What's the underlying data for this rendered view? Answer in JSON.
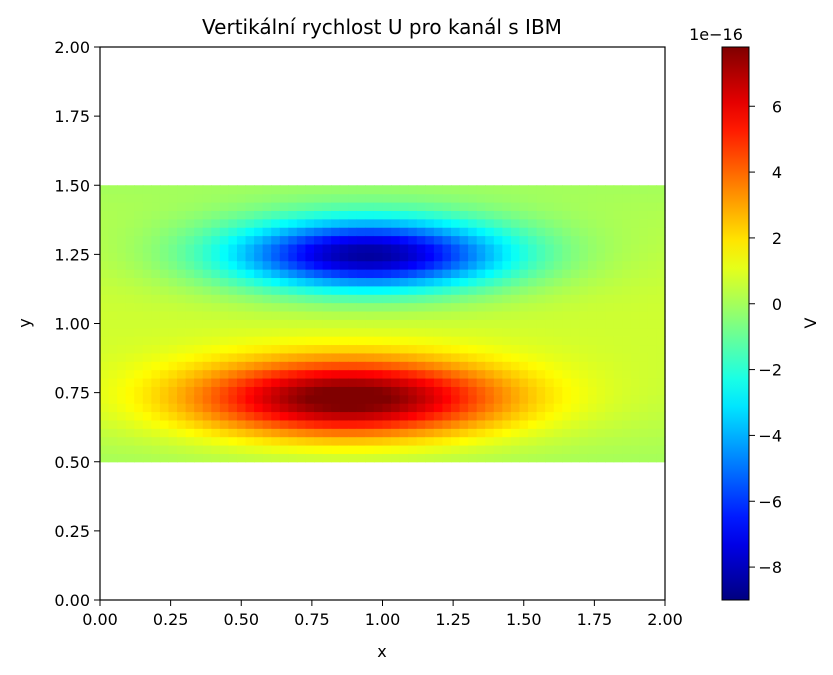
{
  "chart_data": {
    "type": "heatmap",
    "title": "Vertikální rychlost U pro kanál s IBM",
    "xlabel": "x",
    "ylabel": "y",
    "xlim": [
      0.0,
      2.0
    ],
    "ylim": [
      0.0,
      2.0
    ],
    "xticks": [
      "0.00",
      "0.25",
      "0.50",
      "0.75",
      "1.00",
      "1.25",
      "1.50",
      "1.75",
      "2.00"
    ],
    "yticks": [
      "0.00",
      "0.25",
      "0.50",
      "0.75",
      "1.00",
      "1.25",
      "1.50",
      "1.75",
      "2.00"
    ],
    "data_region": {
      "x": [
        0.0,
        2.0
      ],
      "y": [
        0.5,
        1.5
      ]
    },
    "features": [
      {
        "name": "minimum",
        "x": 0.95,
        "y": 1.25,
        "value": -9.0
      },
      {
        "name": "maximum",
        "x": 0.88,
        "y": 0.73,
        "value": 7.8
      }
    ],
    "background_value": 0.0,
    "colormap": "jet",
    "colorbar": {
      "label": "V",
      "exponent_label": "1e−16",
      "range": [
        -9.0,
        7.8
      ],
      "ticks": [
        -8,
        -6,
        -4,
        -2,
        0,
        2,
        4,
        6
      ],
      "tick_labels": [
        "−8",
        "−6",
        "−4",
        "−2",
        "0",
        "2",
        "4",
        "6"
      ]
    }
  }
}
